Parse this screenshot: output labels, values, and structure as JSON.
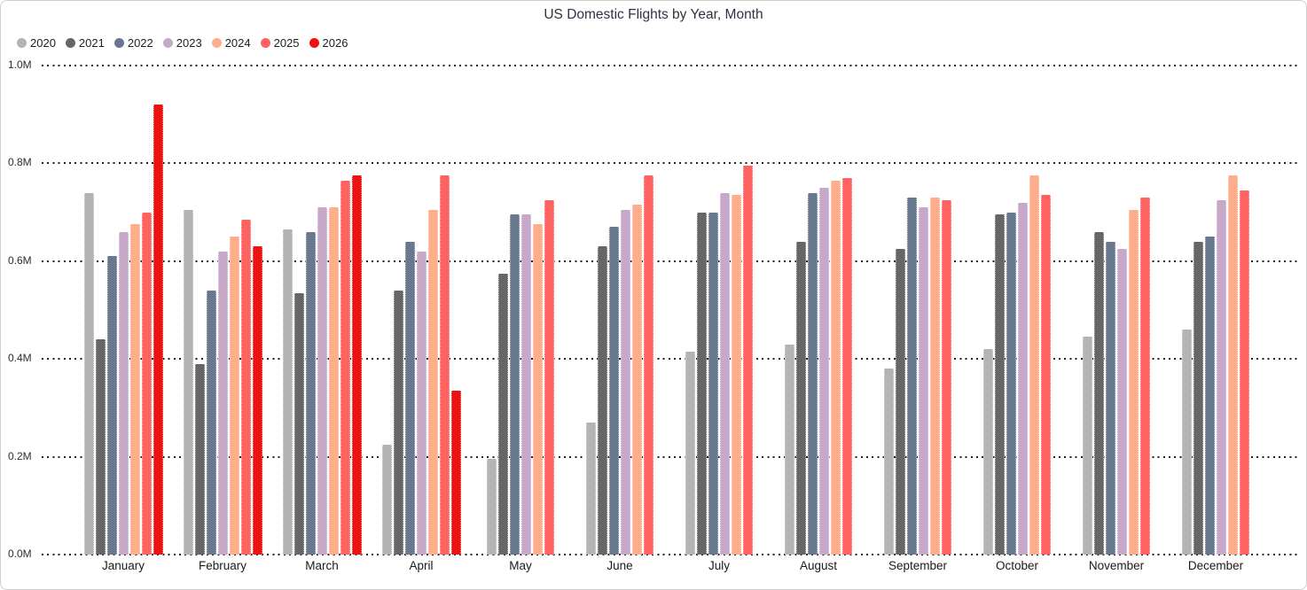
{
  "title": "US Domestic Flights by Year, Month",
  "legend": {
    "items": [
      {
        "label": "2020",
        "color": "#b3b3b1"
      },
      {
        "label": "2021",
        "color": "#666665"
      },
      {
        "label": "2022",
        "color": "#68788f"
      },
      {
        "label": "2023",
        "color": "#c7a8c8"
      },
      {
        "label": "2024",
        "color": "#ffae8c"
      },
      {
        "label": "2025",
        "color": "#ff6361"
      },
      {
        "label": "2026",
        "color": "#ee1111"
      }
    ]
  },
  "y_axis": {
    "tick_labels": [
      "1.0M",
      "0.8M",
      "0.6M",
      "0.4M",
      "0.2M",
      "0.0M"
    ]
  },
  "chart_data": {
    "type": "bar",
    "title": "US Domestic Flights by Year, Month",
    "xlabel": "",
    "ylabel": "",
    "units": "millions of flights",
    "ylim": [
      0,
      1.0
    ],
    "y_ticks": [
      0.0,
      0.2,
      0.4,
      0.6,
      0.8,
      1.0
    ],
    "grid": "horizontal-dotted",
    "legend_position": "top-left",
    "categories": [
      "January",
      "February",
      "March",
      "April",
      "May",
      "June",
      "July",
      "August",
      "September",
      "October",
      "November",
      "December"
    ],
    "series": [
      {
        "name": "2020",
        "color": "#b3b3b1",
        "values": [
          0.74,
          0.705,
          0.665,
          0.225,
          0.195,
          0.27,
          0.415,
          0.43,
          0.38,
          0.42,
          0.445,
          0.46
        ]
      },
      {
        "name": "2021",
        "color": "#666665",
        "values": [
          0.44,
          0.39,
          0.535,
          0.54,
          0.575,
          0.63,
          0.7,
          0.64,
          0.625,
          0.695,
          0.66,
          0.64
        ]
      },
      {
        "name": "2022",
        "color": "#68788f",
        "values": [
          0.61,
          0.54,
          0.66,
          0.64,
          0.695,
          0.67,
          0.7,
          0.74,
          0.73,
          0.7,
          0.64,
          0.65
        ]
      },
      {
        "name": "2023",
        "color": "#c7a8c8",
        "values": [
          0.66,
          0.62,
          0.71,
          0.62,
          0.695,
          0.705,
          0.74,
          0.75,
          0.71,
          0.72,
          0.625,
          0.725
        ]
      },
      {
        "name": "2024",
        "color": "#ffae8c",
        "values": [
          0.675,
          0.65,
          0.71,
          0.705,
          0.675,
          0.715,
          0.735,
          0.765,
          0.73,
          0.775,
          0.705,
          0.775
        ]
      },
      {
        "name": "2025",
        "color": "#ff6361",
        "values": [
          0.7,
          0.685,
          0.765,
          0.775,
          0.725,
          0.775,
          0.795,
          0.77,
          0.725,
          0.735,
          0.73,
          0.745
        ]
      },
      {
        "name": "2026",
        "color": "#ee1111",
        "values": [
          0.92,
          0.63,
          0.775,
          0.335,
          null,
          null,
          null,
          null,
          null,
          null,
          null,
          null
        ]
      }
    ]
  }
}
